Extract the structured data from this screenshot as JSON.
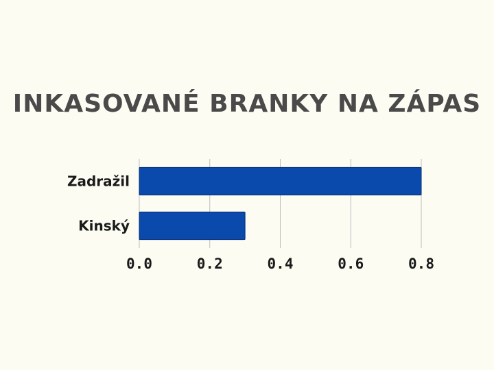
{
  "chart_data": {
    "type": "bar",
    "orientation": "horizontal",
    "title": "INKASOVANÉ BRANKY NA ZÁPAS",
    "categories": [
      "Zadražil",
      "Kinský"
    ],
    "values": [
      0.8,
      0.3
    ],
    "xlim": [
      0,
      0.8
    ],
    "xticks": [
      "0.0",
      "0.2",
      "0.4",
      "0.6",
      "0.8"
    ],
    "xtick_values": [
      0,
      0.2,
      0.4,
      0.6,
      0.8
    ],
    "grid": true,
    "legend": "none",
    "bar_color": "#0a4aad",
    "bar_edge_color": "#062f73"
  }
}
